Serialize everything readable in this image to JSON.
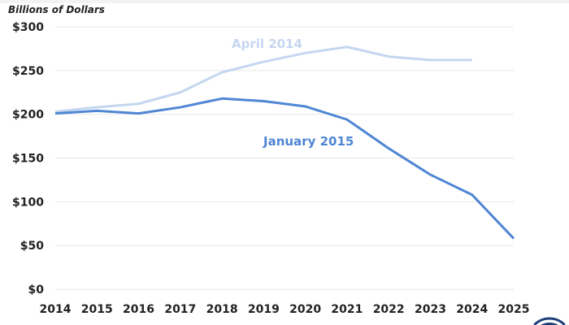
{
  "chart_data": {
    "type": "line",
    "ylabel": "Billions of Dollars",
    "x": [
      2014,
      2015,
      2016,
      2017,
      2018,
      2019,
      2020,
      2021,
      2022,
      2023,
      2024,
      2025
    ],
    "xtick_labels": [
      "2014",
      "2015",
      "2016",
      "2017",
      "2018",
      "2019",
      "2020",
      "2021",
      "2022",
      "2023",
      "2024",
      "2025"
    ],
    "ylim": [
      0,
      300
    ],
    "ytick_labels": [
      "$0",
      "$50",
      "$100",
      "$150",
      "$200",
      "$250",
      "$300"
    ],
    "yticks": [
      0,
      50,
      100,
      150,
      200,
      250,
      300
    ],
    "grid": true,
    "series": [
      {
        "name": "April 2014",
        "color": "#c5d6f0",
        "values": [
          203,
          208,
          212,
          225,
          248,
          260,
          270,
          277,
          266,
          262,
          262,
          null
        ]
      },
      {
        "name": "January 2015",
        "color": "#4f86d4",
        "values": [
          201,
          204,
          201,
          208,
          218,
          215,
          209,
          194,
          161,
          131,
          108,
          58
        ]
      }
    ]
  },
  "colors": {
    "grid": "#e6e6e6",
    "logo": "#1f3f7a"
  }
}
